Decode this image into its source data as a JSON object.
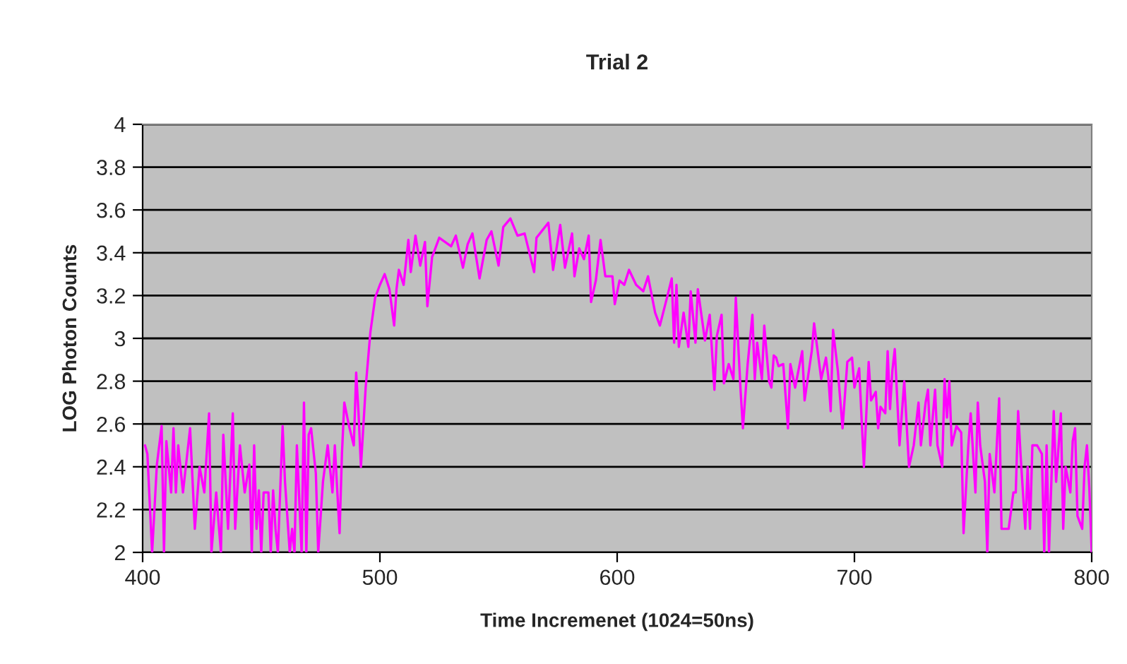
{
  "chart_data": {
    "type": "line",
    "title": "Trial 2",
    "xlabel": "Time Incremenet (1024=50ns)",
    "ylabel": "LOG Photon Counts",
    "xlim": [
      400,
      800
    ],
    "xticks": [
      400,
      500,
      600,
      700,
      800
    ],
    "ylim": [
      2,
      4
    ],
    "yticks": [
      2,
      {
        "value": 2.2,
        "label": "2.2"
      },
      {
        "value": 2.4,
        "label": "2.4"
      },
      {
        "value": 2.6,
        "label": "2.6"
      },
      {
        "value": 2.8,
        "label": "2.8"
      },
      3,
      {
        "value": 3.2,
        "label": "3.2"
      },
      {
        "value": 3.4,
        "label": "3.4"
      },
      {
        "value": 3.6,
        "label": "3.6"
      },
      {
        "value": 3.8,
        "label": "3.8"
      },
      4
    ],
    "grid": "y",
    "legend": false,
    "marker": "none",
    "line_style": "solid",
    "series": [
      {
        "color": "#ff00ff",
        "x": [
          401,
          402,
          404,
          406,
          408,
          409,
          410,
          412,
          413,
          414,
          415,
          417,
          419,
          420,
          422,
          424,
          426,
          428,
          429,
          431,
          433,
          434,
          436,
          438,
          439,
          441,
          443,
          445,
          446,
          447,
          448,
          449,
          450,
          451,
          453,
          454,
          455,
          456,
          457,
          459,
          460,
          462,
          463,
          464,
          465,
          467,
          468,
          469,
          470,
          471,
          473,
          474,
          476,
          478,
          480,
          481,
          483,
          484,
          485,
          487,
          489,
          490,
          491,
          492,
          494,
          496,
          498,
          500,
          502,
          504,
          506,
          507,
          508,
          510,
          512,
          513,
          515,
          517,
          519,
          520,
          522,
          525,
          530,
          532,
          535,
          537,
          539,
          542,
          545,
          547,
          550,
          552,
          555,
          558,
          561,
          565,
          566,
          571,
          573,
          576,
          578,
          581,
          582,
          584,
          586,
          588,
          589,
          591,
          593,
          595,
          598,
          599,
          601,
          603,
          605,
          608,
          611,
          613,
          616,
          618,
          621,
          623,
          624,
          625,
          626,
          628,
          630,
          631,
          633,
          634,
          637,
          639,
          641,
          642,
          644,
          645,
          647,
          649,
          650,
          652,
          653,
          655,
          657,
          658,
          659,
          661,
          662,
          664,
          665,
          666,
          667,
          668,
          670,
          672,
          673,
          675,
          678,
          679,
          682,
          683,
          686,
          688,
          689,
          690,
          691,
          693,
          695,
          697,
          699,
          700,
          702,
          704,
          706,
          707,
          709,
          710,
          711,
          713,
          714,
          715,
          716,
          717,
          719,
          721,
          723,
          725,
          727,
          728,
          730,
          731,
          732,
          734,
          735,
          737,
          738,
          739,
          740,
          741,
          743,
          745,
          746,
          748,
          749,
          751,
          752,
          753,
          755,
          756,
          757,
          759,
          761,
          762,
          763,
          765,
          767,
          768,
          769,
          770,
          772,
          773,
          774,
          775,
          777,
          779,
          780,
          781,
          782,
          784,
          785,
          787,
          788,
          789,
          791,
          792,
          793,
          794,
          796,
          797,
          798,
          799,
          800
        ],
        "values": [
          2.5,
          2.46,
          2.0,
          2.41,
          2.59,
          2.0,
          2.52,
          2.28,
          2.58,
          2.28,
          2.5,
          2.28,
          2.48,
          2.58,
          2.11,
          2.4,
          2.28,
          2.65,
          2.0,
          2.28,
          2.0,
          2.55,
          2.11,
          2.65,
          2.11,
          2.5,
          2.28,
          2.41,
          2.0,
          2.5,
          2.11,
          2.29,
          2.0,
          2.28,
          2.28,
          2.0,
          2.29,
          2.11,
          2.0,
          2.59,
          2.33,
          2.0,
          2.11,
          2.0,
          2.5,
          2.0,
          2.7,
          2.0,
          2.55,
          2.58,
          2.37,
          2.0,
          2.33,
          2.5,
          2.28,
          2.5,
          2.09,
          2.46,
          2.7,
          2.59,
          2.5,
          2.84,
          2.65,
          2.4,
          2.77,
          3.03,
          3.19,
          3.25,
          3.3,
          3.23,
          3.06,
          3.23,
          3.32,
          3.25,
          3.46,
          3.31,
          3.48,
          3.34,
          3.45,
          3.15,
          3.38,
          3.47,
          3.43,
          3.48,
          3.33,
          3.44,
          3.49,
          3.28,
          3.46,
          3.5,
          3.34,
          3.52,
          3.56,
          3.48,
          3.49,
          3.31,
          3.47,
          3.54,
          3.32,
          3.53,
          3.33,
          3.49,
          3.29,
          3.42,
          3.37,
          3.48,
          3.17,
          3.27,
          3.46,
          3.29,
          3.29,
          3.16,
          3.27,
          3.25,
          3.32,
          3.25,
          3.22,
          3.29,
          3.12,
          3.06,
          3.19,
          3.28,
          2.98,
          3.25,
          2.96,
          3.12,
          2.96,
          3.22,
          2.98,
          3.23,
          2.99,
          3.11,
          2.76,
          3.01,
          3.11,
          2.79,
          2.88,
          2.81,
          3.19,
          2.76,
          2.58,
          2.88,
          3.11,
          2.81,
          2.98,
          2.81,
          3.06,
          2.8,
          2.77,
          2.92,
          2.91,
          2.87,
          2.88,
          2.58,
          2.88,
          2.77,
          2.94,
          2.71,
          2.94,
          3.07,
          2.81,
          2.91,
          2.82,
          2.66,
          3.04,
          2.85,
          2.58,
          2.89,
          2.91,
          2.77,
          2.86,
          2.4,
          2.89,
          2.71,
          2.75,
          2.58,
          2.68,
          2.65,
          2.94,
          2.67,
          2.85,
          2.95,
          2.5,
          2.8,
          2.4,
          2.5,
          2.7,
          2.5,
          2.7,
          2.76,
          2.5,
          2.76,
          2.5,
          2.4,
          2.81,
          2.63,
          2.8,
          2.5,
          2.59,
          2.56,
          2.09,
          2.5,
          2.65,
          2.28,
          2.7,
          2.5,
          2.33,
          2.0,
          2.46,
          2.28,
          2.72,
          2.11,
          2.11,
          2.11,
          2.28,
          2.28,
          2.66,
          2.46,
          2.11,
          2.4,
          2.11,
          2.5,
          2.5,
          2.46,
          2.0,
          2.5,
          2.0,
          2.66,
          2.33,
          2.65,
          2.11,
          2.4,
          2.28,
          2.52,
          2.58,
          2.17,
          2.11,
          2.4,
          2.5,
          2.3,
          2.0
        ]
      }
    ]
  }
}
